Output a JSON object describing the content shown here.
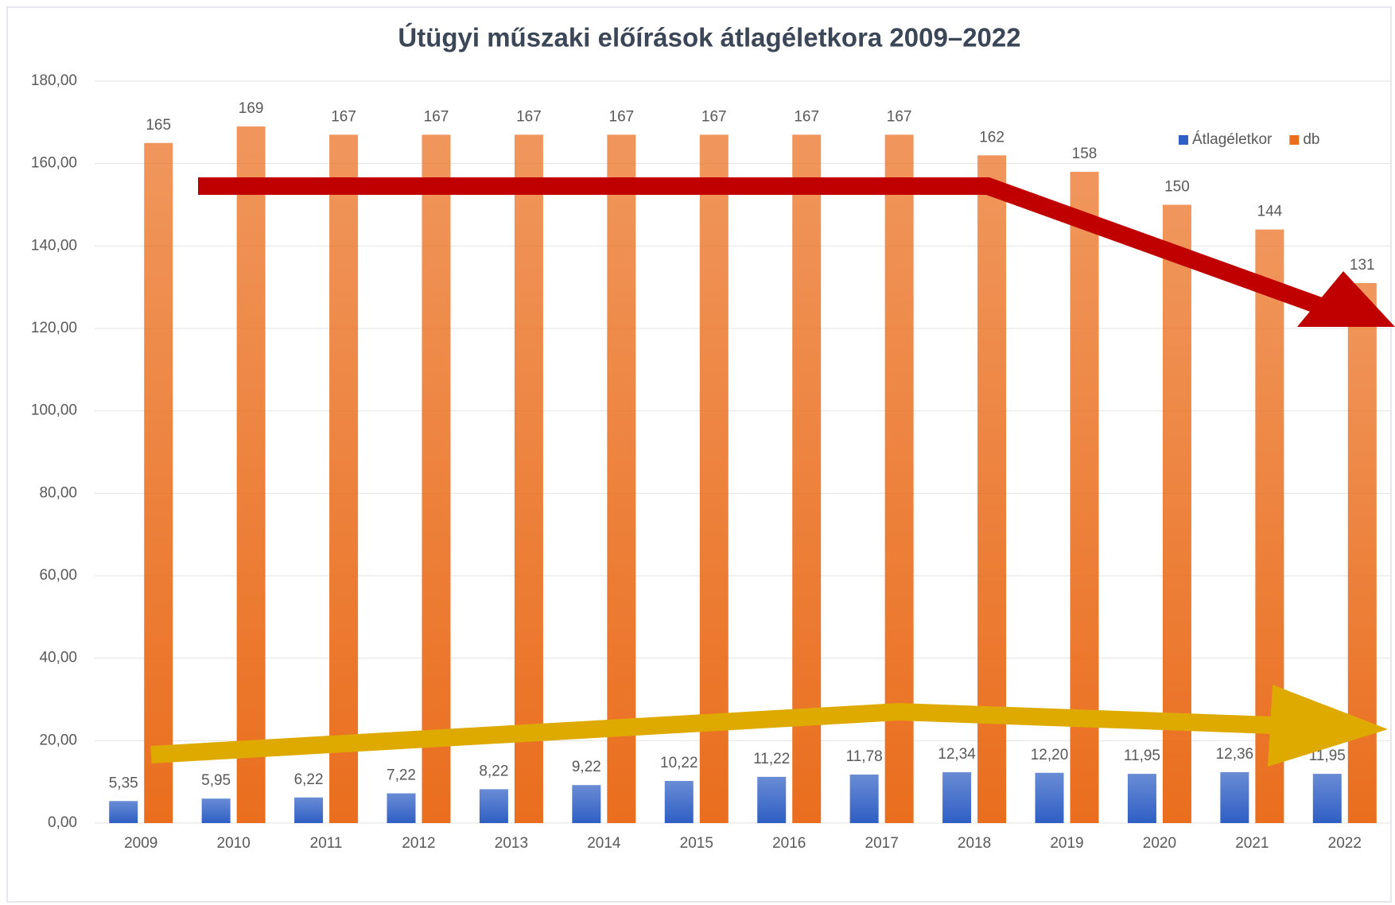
{
  "chart_data": {
    "type": "bar",
    "title": "Útügyi műszaki előírások átlagéletkora 2009–2022",
    "categories": [
      "2009",
      "2010",
      "2011",
      "2012",
      "2013",
      "2014",
      "2015",
      "2016",
      "2017",
      "2018",
      "2019",
      "2020",
      "2021",
      "2022"
    ],
    "series": [
      {
        "name": "Átlagéletkor",
        "color": "#2f5fc4",
        "values": [
          5.35,
          5.95,
          6.22,
          7.22,
          8.22,
          9.22,
          10.22,
          11.22,
          11.78,
          12.34,
          12.2,
          11.95,
          12.36,
          11.95
        ],
        "value_labels": [
          "5,35",
          "5,95",
          "6,22",
          "7,22",
          "8,22",
          "9,22",
          "10,22",
          "11,22",
          "11,78",
          "12,34",
          "12,20",
          "11,95",
          "12,36",
          "11,95"
        ]
      },
      {
        "name": "db",
        "color": "#ea6e1e",
        "values": [
          165,
          169,
          167,
          167,
          167,
          167,
          167,
          167,
          167,
          162,
          158,
          150,
          144,
          131
        ]
      }
    ],
    "ylim": [
      0,
      180
    ],
    "yticks": [
      {
        "value": 0,
        "label": "0,00"
      },
      {
        "value": 20,
        "label": "20,00"
      },
      {
        "value": 40,
        "label": "40,00"
      },
      {
        "value": 60,
        "label": "60,00"
      },
      {
        "value": 80,
        "label": "80,00"
      },
      {
        "value": 100,
        "label": "100,00"
      },
      {
        "value": 120,
        "label": "120,00"
      },
      {
        "value": 140,
        "label": "140,00"
      },
      {
        "value": 160,
        "label": "160,00"
      },
      {
        "value": 180,
        "label": "180,00"
      }
    ],
    "grid": true,
    "legend": "top-right"
  }
}
